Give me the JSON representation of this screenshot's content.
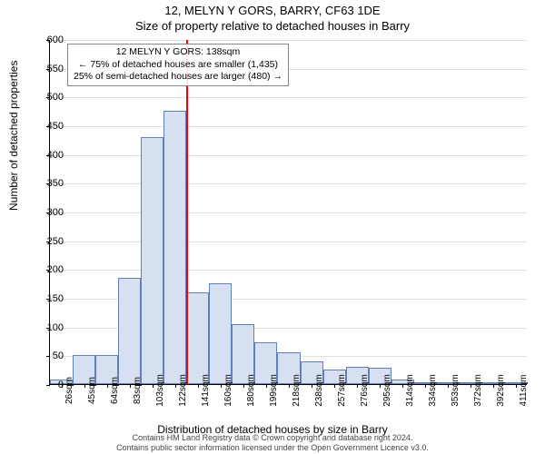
{
  "titles": {
    "line1": "12, MELYN Y GORS, BARRY, CF63 1DE",
    "line2": "Size of property relative to detached houses in Barry"
  },
  "axes": {
    "ylabel": "Number of detached properties",
    "xlabel": "Distribution of detached houses by size in Barry",
    "ylim": [
      0,
      600
    ],
    "ytick_step": 50,
    "grid_color": "#e0e0e0"
  },
  "chart": {
    "type": "histogram",
    "bar_fill": "#d6e0f0",
    "bar_stroke": "#6080b8",
    "background": "#ffffff",
    "x_categories": [
      "26sqm",
      "45sqm",
      "64sqm",
      "83sqm",
      "103sqm",
      "122sqm",
      "141sqm",
      "160sqm",
      "180sqm",
      "199sqm",
      "218sqm",
      "238sqm",
      "257sqm",
      "276sqm",
      "295sqm",
      "314sqm",
      "334sqm",
      "353sqm",
      "372sqm",
      "392sqm",
      "411sqm"
    ],
    "values": [
      8,
      50,
      50,
      185,
      430,
      475,
      160,
      175,
      105,
      72,
      55,
      40,
      25,
      30,
      28,
      8,
      3,
      3,
      3,
      3,
      2
    ]
  },
  "marker": {
    "color": "#ff0000",
    "position_index": 6,
    "annotation": {
      "l1": "12 MELYN Y GORS: 138sqm",
      "l2": "← 75% of detached houses are smaller (1,435)",
      "l3": "25% of semi-detached houses are larger (480) →"
    }
  },
  "footer": {
    "l1": "Contains HM Land Registry data © Crown copyright and database right 2024.",
    "l2": "Contains public sector information licensed under the Open Government Licence v3.0."
  }
}
